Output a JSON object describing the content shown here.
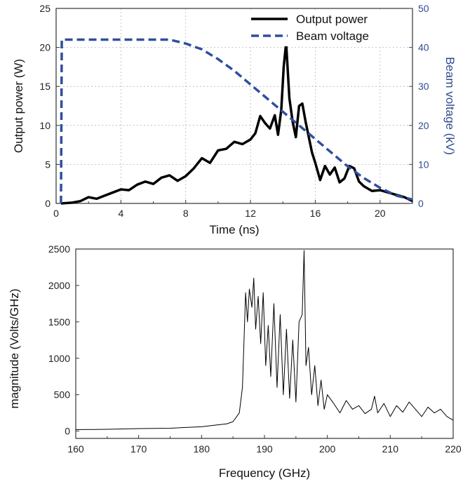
{
  "chart_data": [
    {
      "type": "line",
      "title": "",
      "xlabel": "Time (ns)",
      "ylabel": "Output power (W)",
      "y2label": "Beam voltage (kV)",
      "xlim": [
        0,
        22
      ],
      "ylim": [
        0,
        25
      ],
      "y2lim": [
        0,
        50
      ],
      "xticks": [
        0,
        4,
        8,
        12,
        16,
        20
      ],
      "yticks": [
        0,
        5,
        10,
        15,
        20,
        25
      ],
      "y2ticks": [
        0,
        10,
        20,
        30,
        40,
        50
      ],
      "grid": true,
      "legend_position": "top-right",
      "series": [
        {
          "name": "Output power",
          "axis": "left",
          "style": "solid",
          "color": "#000000",
          "x": [
            0.3,
            1.0,
            1.5,
            2.0,
            2.5,
            3.0,
            3.5,
            4.0,
            4.5,
            5.0,
            5.5,
            6.0,
            6.5,
            7.0,
            7.5,
            8.0,
            8.5,
            9.0,
            9.5,
            10.0,
            10.5,
            11.0,
            11.5,
            12.0,
            12.3,
            12.6,
            12.9,
            13.2,
            13.5,
            13.7,
            13.9,
            14.05,
            14.2,
            14.4,
            14.6,
            14.8,
            15.0,
            15.2,
            15.4,
            15.6,
            15.8,
            16.0,
            16.3,
            16.6,
            16.9,
            17.2,
            17.5,
            17.8,
            18.1,
            18.4,
            18.7,
            19.0,
            19.5,
            20.0,
            20.5,
            21.0,
            21.5,
            22.0
          ],
          "y": [
            0.0,
            0.1,
            0.3,
            0.8,
            0.6,
            1.0,
            1.4,
            1.8,
            1.7,
            2.4,
            2.8,
            2.5,
            3.3,
            3.6,
            2.9,
            3.5,
            4.5,
            5.8,
            5.2,
            6.8,
            7.0,
            7.9,
            7.6,
            8.2,
            9.0,
            11.2,
            10.3,
            9.6,
            11.3,
            8.8,
            12.0,
            17.5,
            20.6,
            13.5,
            10.5,
            8.5,
            12.5,
            12.8,
            10.5,
            8.5,
            6.5,
            5.2,
            3.0,
            4.8,
            3.7,
            4.6,
            2.7,
            3.2,
            4.8,
            4.5,
            2.8,
            2.2,
            1.6,
            1.7,
            1.4,
            1.1,
            0.8,
            0.3
          ]
        },
        {
          "name": "Beam voltage",
          "axis": "right",
          "style": "dashed",
          "color": "#2f4f9c",
          "x": [
            0.3,
            0.35,
            1.0,
            2.0,
            4.0,
            6.0,
            7.0,
            8.0,
            9.0,
            10.0,
            11.0,
            12.0,
            13.0,
            14.0,
            15.0,
            16.0,
            17.0,
            18.0,
            19.0,
            20.0,
            21.0,
            22.0
          ],
          "y": [
            0.0,
            42.0,
            42.0,
            42.0,
            42.0,
            42.0,
            42.0,
            41.0,
            39.5,
            37.0,
            34.0,
            30.5,
            27.0,
            23.5,
            20.0,
            16.5,
            13.0,
            9.5,
            6.5,
            4.0,
            2.0,
            1.0
          ]
        }
      ]
    },
    {
      "type": "line",
      "title": "",
      "xlabel": "Frequency (GHz)",
      "ylabel": "magnitude (Volts/GHz)",
      "xlim": [
        160,
        220
      ],
      "ylim": [
        -100,
        2500
      ],
      "xticks": [
        160,
        170,
        180,
        190,
        200,
        210,
        220
      ],
      "yticks": [
        0,
        500,
        1000,
        1500,
        2000,
        2500
      ],
      "grid": false,
      "series": [
        {
          "name": "",
          "color": "#000000",
          "x": [
            160,
            165,
            170,
            175,
            180,
            182,
            184,
            185,
            186,
            186.5,
            187,
            187.3,
            187.6,
            188,
            188.3,
            188.6,
            189,
            189.4,
            189.8,
            190.2,
            190.6,
            191,
            191.5,
            192,
            192.5,
            193,
            193.5,
            194,
            194.5,
            195,
            195.5,
            196,
            196.3,
            196.6,
            197,
            197.5,
            198,
            198.5,
            199,
            199.5,
            200,
            201,
            202,
            203,
            204,
            205,
            206,
            207,
            207.5,
            208,
            209,
            210,
            211,
            212,
            213,
            214,
            215,
            216,
            217,
            218,
            219,
            220
          ],
          "y": [
            20,
            25,
            35,
            40,
            60,
            80,
            100,
            130,
            250,
            600,
            1900,
            1500,
            1950,
            1700,
            2100,
            1400,
            1850,
            1200,
            1900,
            900,
            1450,
            750,
            1750,
            600,
            1600,
            500,
            1400,
            450,
            1250,
            400,
            1500,
            1600,
            2480,
            900,
            1150,
            500,
            900,
            350,
            700,
            300,
            500,
            380,
            250,
            420,
            300,
            350,
            240,
            300,
            480,
            250,
            380,
            200,
            350,
            260,
            400,
            300,
            200,
            330,
            250,
            300,
            200,
            150
          ]
        }
      ]
    }
  ]
}
